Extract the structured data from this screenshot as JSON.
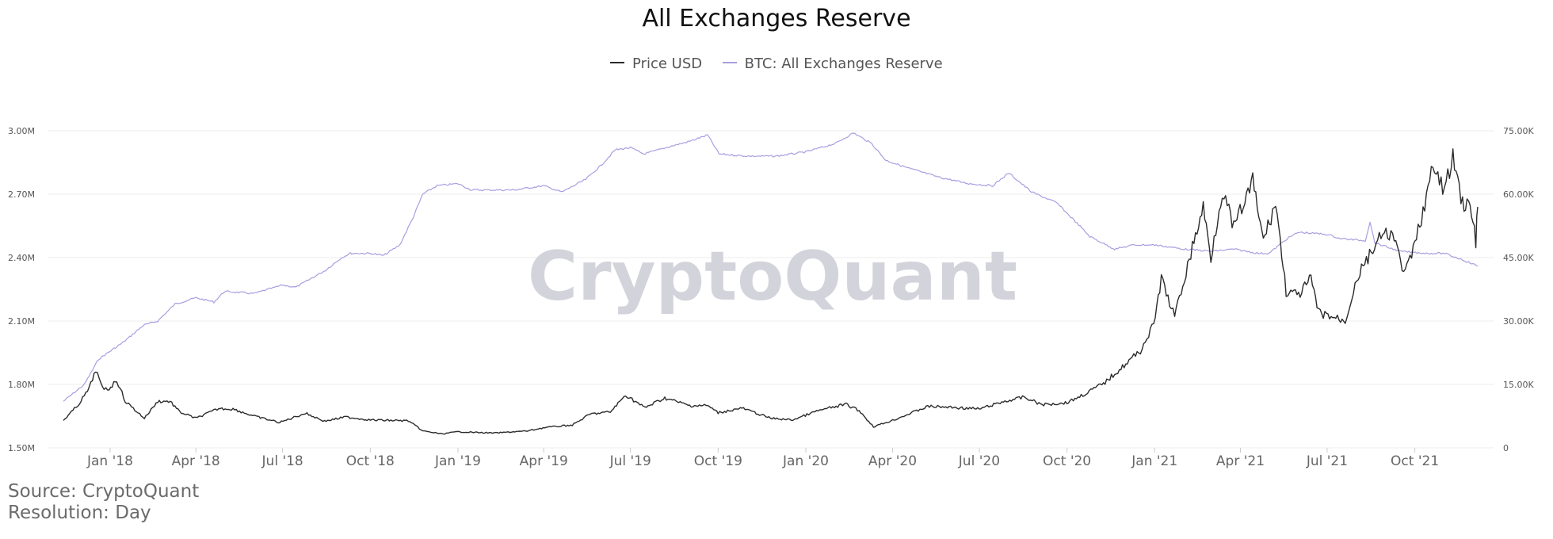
{
  "title": "All Exchanges Reserve",
  "watermark": "CryptoQuant",
  "footer": {
    "source": "Source: CryptoQuant",
    "resolution": "Resolution: Day"
  },
  "legend": [
    {
      "label": "Price USD",
      "color": "#2b2b2b"
    },
    {
      "label": "BTC: All Exchanges Reserve",
      "color": "#a99ee0"
    }
  ],
  "chart_data": {
    "type": "line",
    "title": "All Exchanges Reserve",
    "x_range": [
      "2017-11-13",
      "2021-12-06"
    ],
    "x_ticks": [
      {
        "label": "Jan '18",
        "date": "2018-01-01"
      },
      {
        "label": "Apr '18",
        "date": "2018-04-01"
      },
      {
        "label": "Jul '18",
        "date": "2018-07-01"
      },
      {
        "label": "Oct '18",
        "date": "2018-10-01"
      },
      {
        "label": "Jan '19",
        "date": "2019-01-01"
      },
      {
        "label": "Apr '19",
        "date": "2019-04-01"
      },
      {
        "label": "Jul '19",
        "date": "2019-07-01"
      },
      {
        "label": "Oct '19",
        "date": "2019-10-01"
      },
      {
        "label": "Jan '20",
        "date": "2020-01-01"
      },
      {
        "label": "Apr '20",
        "date": "2020-04-01"
      },
      {
        "label": "Jul '20",
        "date": "2020-07-01"
      },
      {
        "label": "Oct '20",
        "date": "2020-10-01"
      },
      {
        "label": "Jan '21",
        "date": "2021-01-01"
      },
      {
        "label": "Apr '21",
        "date": "2021-04-01"
      },
      {
        "label": "Jul '21",
        "date": "2021-07-01"
      },
      {
        "label": "Oct '21",
        "date": "2021-10-01"
      }
    ],
    "y_left": {
      "range": [
        1500000,
        3000000
      ],
      "ticks": [
        {
          "label": "1.50M",
          "value": 1500000
        },
        {
          "label": "1.80M",
          "value": 1800000
        },
        {
          "label": "2.10M",
          "value": 2100000
        },
        {
          "label": "2.40M",
          "value": 2400000
        },
        {
          "label": "2.70M",
          "value": 2700000
        },
        {
          "label": "3.00M",
          "value": 3000000
        }
      ]
    },
    "y_right": {
      "range": [
        0,
        75000
      ],
      "ticks": [
        {
          "label": "0",
          "value": 0
        },
        {
          "label": "15.00K",
          "value": 15000
        },
        {
          "label": "30.00K",
          "value": 30000
        },
        {
          "label": "45.00K",
          "value": 45000
        },
        {
          "label": "60.00K",
          "value": 60000
        },
        {
          "label": "75.00K",
          "value": 75000
        }
      ]
    },
    "grid": true,
    "legend_position": "top-center",
    "series": [
      {
        "name": "Price USD",
        "axis": "right",
        "color": "#2b2b2b",
        "points": [
          [
            "2017-11-13",
            6500
          ],
          [
            "2017-11-28",
            10000
          ],
          [
            "2017-12-10",
            14000
          ],
          [
            "2017-12-17",
            18500
          ],
          [
            "2017-12-24",
            14000
          ],
          [
            "2017-12-31",
            14000
          ],
          [
            "2018-01-08",
            16000
          ],
          [
            "2018-01-17",
            11000
          ],
          [
            "2018-02-06",
            7000
          ],
          [
            "2018-02-20",
            11000
          ],
          [
            "2018-03-05",
            11000
          ],
          [
            "2018-03-15",
            8500
          ],
          [
            "2018-04-01",
            7000
          ],
          [
            "2018-04-25",
            9300
          ],
          [
            "2018-05-10",
            9200
          ],
          [
            "2018-06-01",
            7500
          ],
          [
            "2018-06-28",
            6000
          ],
          [
            "2018-07-25",
            8200
          ],
          [
            "2018-08-14",
            6300
          ],
          [
            "2018-09-05",
            7300
          ],
          [
            "2018-10-01",
            6600
          ],
          [
            "2018-11-10",
            6400
          ],
          [
            "2018-11-25",
            4000
          ],
          [
            "2018-12-15",
            3300
          ],
          [
            "2019-01-01",
            3800
          ],
          [
            "2019-02-08",
            3500
          ],
          [
            "2019-03-15",
            4000
          ],
          [
            "2019-04-02",
            4800
          ],
          [
            "2019-05-01",
            5400
          ],
          [
            "2019-05-20",
            8000
          ],
          [
            "2019-06-10",
            8500
          ],
          [
            "2019-06-26",
            12500
          ],
          [
            "2019-07-16",
            9500
          ],
          [
            "2019-08-06",
            11800
          ],
          [
            "2019-09-01",
            10000
          ],
          [
            "2019-09-20",
            10000
          ],
          [
            "2019-10-01",
            8300
          ],
          [
            "2019-10-26",
            9400
          ],
          [
            "2019-11-25",
            7000
          ],
          [
            "2019-12-18",
            6600
          ],
          [
            "2020-01-14",
            8800
          ],
          [
            "2020-02-12",
            10300
          ],
          [
            "2020-02-26",
            8800
          ],
          [
            "2020-03-12",
            5000
          ],
          [
            "2020-04-01",
            6500
          ],
          [
            "2020-05-08",
            9800
          ],
          [
            "2020-06-01",
            9600
          ],
          [
            "2020-07-01",
            9200
          ],
          [
            "2020-07-28",
            11000
          ],
          [
            "2020-08-17",
            12000
          ],
          [
            "2020-09-05",
            10200
          ],
          [
            "2020-10-01",
            10700
          ],
          [
            "2020-10-21",
            12900
          ],
          [
            "2020-11-10",
            15500
          ],
          [
            "2020-11-30",
            19500
          ],
          [
            "2020-12-17",
            23000
          ],
          [
            "2020-12-31",
            29000
          ],
          [
            "2021-01-08",
            40000
          ],
          [
            "2021-01-22",
            31000
          ],
          [
            "2021-02-08",
            46000
          ],
          [
            "2021-02-21",
            57000
          ],
          [
            "2021-03-01",
            45000
          ],
          [
            "2021-03-13",
            61000
          ],
          [
            "2021-03-25",
            52000
          ],
          [
            "2021-04-14",
            63000
          ],
          [
            "2021-04-25",
            49000
          ],
          [
            "2021-05-08",
            58000
          ],
          [
            "2021-05-19",
            37000
          ],
          [
            "2021-06-01",
            36000
          ],
          [
            "2021-06-14",
            40000
          ],
          [
            "2021-06-22",
            32000
          ],
          [
            "2021-07-20",
            30000
          ],
          [
            "2021-08-01",
            40000
          ],
          [
            "2021-08-23",
            49000
          ],
          [
            "2021-09-06",
            51000
          ],
          [
            "2021-09-21",
            41000
          ],
          [
            "2021-10-01",
            48000
          ],
          [
            "2021-10-20",
            66000
          ],
          [
            "2021-11-01",
            61000
          ],
          [
            "2021-11-10",
            68500
          ],
          [
            "2021-11-20",
            58000
          ],
          [
            "2021-11-28",
            57000
          ],
          [
            "2021-12-04",
            49000
          ],
          [
            "2021-12-06",
            57000
          ]
        ]
      },
      {
        "name": "BTC: All Exchanges Reserve",
        "axis": "left",
        "color": "#a99ee0",
        "points": [
          [
            "2017-11-13",
            1720000
          ],
          [
            "2017-12-05",
            1800000
          ],
          [
            "2017-12-20",
            1920000
          ],
          [
            "2018-01-15",
            2000000
          ],
          [
            "2018-02-05",
            2080000
          ],
          [
            "2018-02-20",
            2100000
          ],
          [
            "2018-03-10",
            2180000
          ],
          [
            "2018-04-01",
            2210000
          ],
          [
            "2018-04-20",
            2190000
          ],
          [
            "2018-05-01",
            2240000
          ],
          [
            "2018-06-01",
            2230000
          ],
          [
            "2018-07-01",
            2270000
          ],
          [
            "2018-07-15",
            2260000
          ],
          [
            "2018-08-15",
            2340000
          ],
          [
            "2018-09-01",
            2400000
          ],
          [
            "2018-09-10",
            2420000
          ],
          [
            "2018-10-01",
            2420000
          ],
          [
            "2018-10-15",
            2410000
          ],
          [
            "2018-11-01",
            2460000
          ],
          [
            "2018-11-15",
            2590000
          ],
          [
            "2018-11-25",
            2700000
          ],
          [
            "2018-12-10",
            2740000
          ],
          [
            "2019-01-01",
            2750000
          ],
          [
            "2019-01-15",
            2720000
          ],
          [
            "2019-02-01",
            2720000
          ],
          [
            "2019-03-01",
            2720000
          ],
          [
            "2019-04-01",
            2740000
          ],
          [
            "2019-04-20",
            2710000
          ],
          [
            "2019-05-15",
            2770000
          ],
          [
            "2019-06-01",
            2840000
          ],
          [
            "2019-06-15",
            2910000
          ],
          [
            "2019-07-01",
            2920000
          ],
          [
            "2019-07-15",
            2890000
          ],
          [
            "2019-08-15",
            2930000
          ],
          [
            "2019-09-01",
            2950000
          ],
          [
            "2019-09-20",
            2980000
          ],
          [
            "2019-10-02",
            2890000
          ],
          [
            "2019-11-01",
            2880000
          ],
          [
            "2019-12-01",
            2880000
          ],
          [
            "2020-01-01",
            2900000
          ],
          [
            "2020-02-01",
            2940000
          ],
          [
            "2020-02-20",
            2990000
          ],
          [
            "2020-03-10",
            2940000
          ],
          [
            "2020-03-25",
            2860000
          ],
          [
            "2020-04-20",
            2820000
          ],
          [
            "2020-05-20",
            2780000
          ],
          [
            "2020-06-20",
            2750000
          ],
          [
            "2020-07-15",
            2740000
          ],
          [
            "2020-08-01",
            2800000
          ],
          [
            "2020-08-25",
            2710000
          ],
          [
            "2020-09-20",
            2660000
          ],
          [
            "2020-10-10",
            2570000
          ],
          [
            "2020-10-25",
            2500000
          ],
          [
            "2020-11-20",
            2440000
          ],
          [
            "2020-12-10",
            2460000
          ],
          [
            "2021-01-01",
            2460000
          ],
          [
            "2021-02-01",
            2440000
          ],
          [
            "2021-03-01",
            2430000
          ],
          [
            "2021-03-25",
            2440000
          ],
          [
            "2021-04-20",
            2420000
          ],
          [
            "2021-05-01",
            2420000
          ],
          [
            "2021-05-20",
            2490000
          ],
          [
            "2021-06-01",
            2520000
          ],
          [
            "2021-07-01",
            2510000
          ],
          [
            "2021-07-15",
            2490000
          ],
          [
            "2021-08-10",
            2480000
          ],
          [
            "2021-08-15",
            2570000
          ],
          [
            "2021-08-20",
            2470000
          ],
          [
            "2021-09-15",
            2430000
          ],
          [
            "2021-10-15",
            2420000
          ],
          [
            "2021-11-01",
            2420000
          ],
          [
            "2021-11-20",
            2390000
          ],
          [
            "2021-12-06",
            2360000
          ]
        ]
      }
    ]
  }
}
